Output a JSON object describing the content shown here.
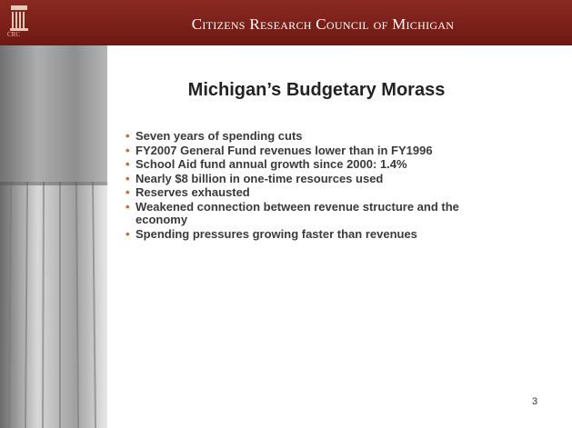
{
  "header": {
    "logo": "CRC",
    "title": "Citizens Research Council of Michigan"
  },
  "slide": {
    "title": "Michigan’s Budgetary Morass",
    "bullets": [
      "Seven years of spending cuts",
      "FY2007 General Fund revenues lower than in FY1996",
      "School Aid fund annual growth since 2000: 1.4%",
      "Nearly $8 billion in one-time resources used",
      "Reserves exhausted",
      "Weakened connection between revenue structure and the economy",
      "Spending pressures growing faster than revenues"
    ],
    "page_number": "3"
  }
}
